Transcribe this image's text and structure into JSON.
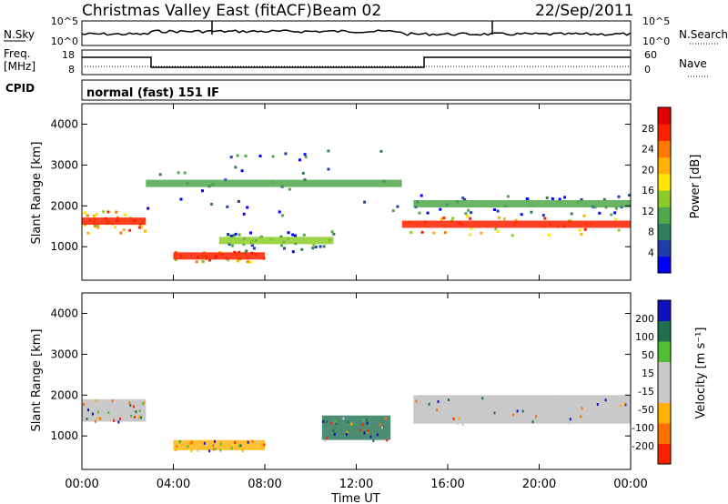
{
  "header": {
    "title": "Christmas Valley East (fitACF)",
    "beam": "Beam 02",
    "date": "22/Sep/2011"
  },
  "status_panels": {
    "nsky_label": "N.Sky",
    "nsky_ticks": [
      "10^5",
      "10^0"
    ],
    "nsearch_label": "N.Search",
    "nsearch_ticks": [
      "10^5",
      "10^0"
    ],
    "freq_label": "Freq.",
    "freq_unit": "[MHz]",
    "freq_ticks": [
      "18",
      "8"
    ],
    "nave_label": "Nave",
    "nave_ticks": [
      "60",
      "0"
    ],
    "cpid_label": "CPID",
    "cpid_value": "normal (fast) 151 IF"
  },
  "colors": {
    "power_scale": [
      "#0000ff",
      "#1f3da8",
      "#2e7d5e",
      "#4fa84a",
      "#8ccc28",
      "#ffe600",
      "#ffb000",
      "#ff7800",
      "#ff2000",
      "#e00000"
    ],
    "velocity_scale": [
      "#1010c0",
      "#207050",
      "#50c030",
      "#c8c8c8",
      "#c8c8c8",
      "#ffb000",
      "#ff7000",
      "#ff2000"
    ],
    "ground_scatter": "#bcbcbc"
  },
  "chart_data": [
    {
      "type": "heatmap",
      "name": "power",
      "ylabel": "Slant Range [km]",
      "ylim": [
        180,
        4500
      ],
      "y_ticks": [
        1000,
        2000,
        3000,
        4000
      ],
      "x_ticks": [
        "00:00",
        "04:00",
        "08:00",
        "12:00",
        "16:00",
        "20:00",
        "00:00"
      ],
      "xlim_hours": [
        0,
        24
      ],
      "colorbar": {
        "label": "Power [dB]",
        "ticks": [
          4,
          8,
          12,
          16,
          20,
          24,
          28
        ],
        "range": [
          0,
          32
        ]
      },
      "features": [
        {
          "hours": [
            0.0,
            2.8
          ],
          "range_km": [
            1350,
            1900
          ],
          "power_db": 28
        },
        {
          "hours": [
            2.8,
            14.0
          ],
          "range_km": [
            1700,
            3400
          ],
          "power_db": 12
        },
        {
          "hours": [
            4.0,
            8.0
          ],
          "range_km": [
            650,
            900
          ],
          "power_db": 28
        },
        {
          "hours": [
            6.0,
            11.0
          ],
          "range_km": [
            900,
            1400
          ],
          "power_db": 14
        },
        {
          "hours": [
            14.0,
            24.0
          ],
          "range_km": [
            1300,
            1800
          ],
          "power_db": 28
        },
        {
          "hours": [
            14.5,
            24.0
          ],
          "range_km": [
            1800,
            2300
          ],
          "power_db": 12
        }
      ]
    },
    {
      "type": "heatmap",
      "name": "velocity",
      "ylabel": "Slant Range [km]",
      "ylim": [
        180,
        4500
      ],
      "y_ticks": [
        1000,
        2000,
        3000,
        4000
      ],
      "x_ticks": [
        "00:00",
        "04:00",
        "08:00",
        "12:00",
        "16:00",
        "20:00",
        "00:00"
      ],
      "xlabel": "Time UT",
      "xlim_hours": [
        0,
        24
      ],
      "colorbar": {
        "label": "Velocity [m s⁻¹]",
        "ticks": [
          200,
          100,
          50,
          15,
          -15,
          -50,
          -100,
          -200
        ]
      },
      "features": [
        {
          "hours": [
            0.0,
            2.8
          ],
          "range_km": [
            1350,
            1900
          ],
          "kind": "ground scatter"
        },
        {
          "hours": [
            14.5,
            24.0
          ],
          "range_km": [
            1300,
            2000
          ],
          "kind": "ground scatter"
        },
        {
          "hours": [
            10.5,
            13.5
          ],
          "range_km": [
            900,
            1500
          ],
          "velocity": 100
        },
        {
          "hours": [
            4.0,
            8.0
          ],
          "range_km": [
            650,
            900
          ],
          "velocity": -50
        }
      ]
    }
  ]
}
